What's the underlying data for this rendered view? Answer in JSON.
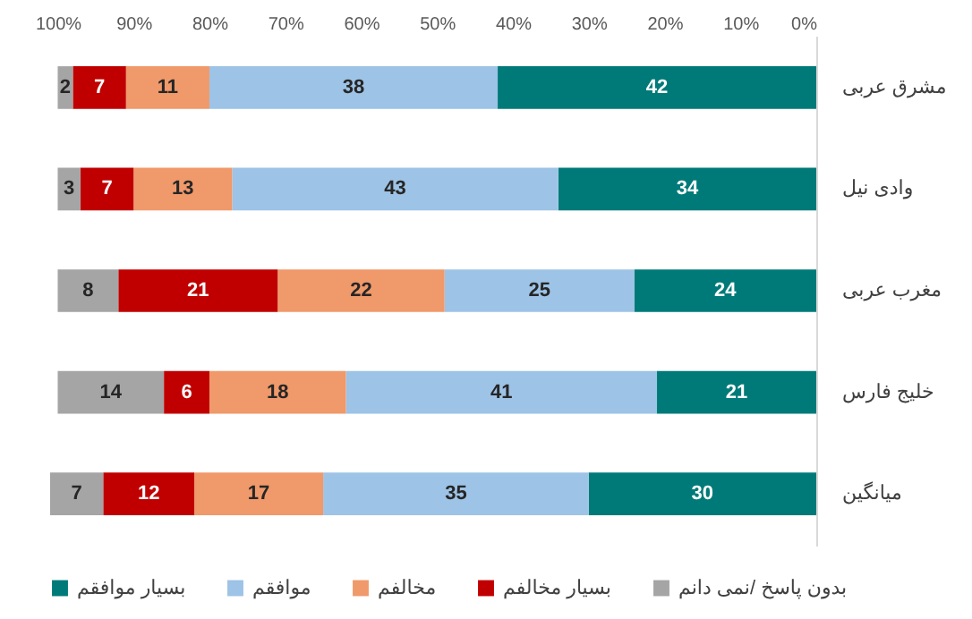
{
  "chart_data": {
    "type": "bar",
    "orientation": "horizontal",
    "stacked": true,
    "data_labels": true,
    "legend": "bottom",
    "grid": false,
    "categories": [
      "مشرق عربی",
      "وادی نیل",
      "مغرب عربی",
      "خلیج فارس",
      "میانگین"
    ],
    "series": [
      {
        "name": "بسیار موافقم",
        "color": "#007a78",
        "values": [
          42,
          34,
          24,
          21,
          30
        ]
      },
      {
        "name": "موافقم",
        "color": "#9dc3e6",
        "values": [
          38,
          43,
          25,
          41,
          35
        ]
      },
      {
        "name": "مخالفم",
        "color": "#f0996a",
        "values": [
          11,
          13,
          22,
          18,
          17
        ]
      },
      {
        "name": "بسیار مخالفم",
        "color": "#c00000",
        "values": [
          7,
          7,
          21,
          6,
          12
        ]
      },
      {
        "name": "بدون پاسخ /نمی دانم",
        "color": "#a5a5a5",
        "values": [
          2,
          3,
          8,
          14,
          7
        ]
      }
    ],
    "xlim": [
      101,
      0
    ],
    "xticks": [
      {
        "value": 100,
        "label": "100%"
      },
      {
        "value": 90,
        "label": "90%"
      },
      {
        "value": 80,
        "label": "80%"
      },
      {
        "value": 70,
        "label": "70%"
      },
      {
        "value": 60,
        "label": "60%"
      },
      {
        "value": 50,
        "label": "50%"
      },
      {
        "value": 40,
        "label": "40%"
      },
      {
        "value": 30,
        "label": "30%"
      },
      {
        "value": 20,
        "label": "20%"
      },
      {
        "value": 10,
        "label": "10%"
      },
      {
        "value": 0,
        "label": "0%"
      }
    ]
  }
}
